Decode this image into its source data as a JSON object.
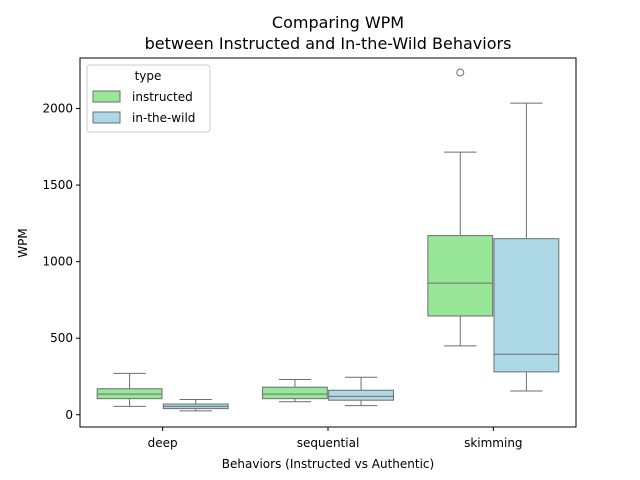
{
  "chart_data": {
    "type": "boxplot",
    "title": "Comparing WPM",
    "subtitle": "between Instructed and In-the-Wild Behaviors",
    "xlabel": "Behaviors (Instructed vs Authentic)",
    "ylabel": "WPM",
    "categories": [
      "deep",
      "sequential",
      "skimming"
    ],
    "ylim": [
      -80,
      2330
    ],
    "yticks": [
      0,
      500,
      1000,
      1500,
      2000
    ],
    "grid": false,
    "legend": {
      "title": "type",
      "position": "top-left"
    },
    "series": [
      {
        "name": "instructed",
        "color": "#98e698",
        "boxes": [
          {
            "category": "deep",
            "whislo": 55,
            "q1": 105,
            "med": 135,
            "q3": 170,
            "whishi": 270,
            "fliers": []
          },
          {
            "category": "sequential",
            "whislo": 85,
            "q1": 105,
            "med": 135,
            "q3": 180,
            "whishi": 230,
            "fliers": []
          },
          {
            "category": "skimming",
            "whislo": 450,
            "q1": 645,
            "med": 860,
            "q3": 1170,
            "whishi": 1715,
            "fliers": [
              2235
            ]
          }
        ]
      },
      {
        "name": "in-the-wild",
        "color": "#add8e6",
        "boxes": [
          {
            "category": "deep",
            "whislo": 25,
            "q1": 40,
            "med": 55,
            "q3": 70,
            "whishi": 100,
            "fliers": []
          },
          {
            "category": "sequential",
            "whislo": 60,
            "q1": 95,
            "med": 120,
            "q3": 160,
            "whishi": 245,
            "fliers": []
          },
          {
            "category": "skimming",
            "whislo": 155,
            "q1": 280,
            "med": 395,
            "q3": 1150,
            "whishi": 2035,
            "fliers": []
          }
        ]
      }
    ],
    "box_edge_color": "#6e6e6e"
  }
}
